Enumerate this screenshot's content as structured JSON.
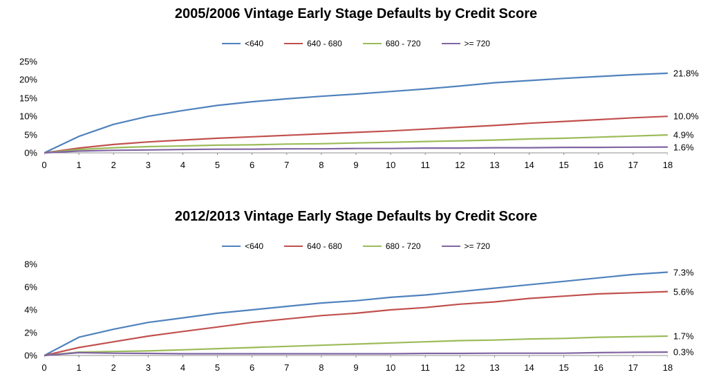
{
  "page": {
    "background": "#ffffff"
  },
  "chart_data": [
    {
      "type": "line",
      "title": "2005/2006 Vintage Early Stage Defaults by Credit Score",
      "xlabel": "",
      "ylabel": "",
      "grid": false,
      "legend_position": "top",
      "x": [
        0,
        1,
        2,
        3,
        4,
        5,
        6,
        7,
        8,
        9,
        10,
        11,
        12,
        13,
        14,
        15,
        16,
        17,
        18
      ],
      "xlim": [
        0,
        18
      ],
      "ylim": [
        0,
        25
      ],
      "yticks": [
        0,
        5,
        10,
        15,
        20,
        25
      ],
      "ytick_labels": [
        "0%",
        "5%",
        "10%",
        "15%",
        "20%",
        "25%"
      ],
      "series": [
        {
          "name": "<640",
          "color": "#4F81BD",
          "end_label": "21.8%",
          "values": [
            0,
            4.5,
            7.8,
            10.0,
            11.6,
            13.0,
            14.0,
            14.8,
            15.5,
            16.1,
            16.8,
            17.5,
            18.3,
            19.2,
            19.8,
            20.4,
            20.9,
            21.4,
            21.8
          ]
        },
        {
          "name": "640 - 680",
          "color": "#C0504D",
          "end_label": "10.0%",
          "values": [
            0,
            1.3,
            2.3,
            3.0,
            3.5,
            4.0,
            4.4,
            4.8,
            5.2,
            5.6,
            6.0,
            6.5,
            7.0,
            7.5,
            8.1,
            8.6,
            9.1,
            9.6,
            10.0
          ]
        },
        {
          "name": "680 - 720",
          "color": "#9BBB59",
          "end_label": "4.9%",
          "values": [
            0,
            0.9,
            1.4,
            1.7,
            1.9,
            2.1,
            2.2,
            2.4,
            2.5,
            2.7,
            2.9,
            3.1,
            3.3,
            3.5,
            3.8,
            4.0,
            4.3,
            4.6,
            4.9
          ]
        },
        {
          "name": ">= 720",
          "color": "#8064A2",
          "end_label": "1.6%",
          "values": [
            0,
            0.5,
            0.7,
            0.8,
            0.9,
            1.0,
            1.0,
            1.1,
            1.1,
            1.2,
            1.2,
            1.3,
            1.3,
            1.4,
            1.4,
            1.5,
            1.5,
            1.55,
            1.6
          ]
        }
      ]
    },
    {
      "type": "line",
      "title": "2012/2013 Vintage Early Stage Defaults by Credit Score",
      "xlabel": "",
      "ylabel": "",
      "grid": false,
      "legend_position": "top",
      "x": [
        0,
        1,
        2,
        3,
        4,
        5,
        6,
        7,
        8,
        9,
        10,
        11,
        12,
        13,
        14,
        15,
        16,
        17,
        18
      ],
      "xlim": [
        0,
        18
      ],
      "ylim": [
        0,
        8
      ],
      "yticks": [
        0,
        2,
        4,
        6,
        8
      ],
      "ytick_labels": [
        "0%",
        "2%",
        "4%",
        "6%",
        "8%"
      ],
      "series": [
        {
          "name": "<640",
          "color": "#4F81BD",
          "end_label": "7.3%",
          "values": [
            0,
            1.6,
            2.3,
            2.9,
            3.3,
            3.7,
            4.0,
            4.3,
            4.6,
            4.8,
            5.1,
            5.3,
            5.6,
            5.9,
            6.2,
            6.5,
            6.8,
            7.1,
            7.3
          ]
        },
        {
          "name": "640 - 680",
          "color": "#C0504D",
          "end_label": "5.6%",
          "values": [
            0,
            0.7,
            1.2,
            1.7,
            2.1,
            2.5,
            2.9,
            3.2,
            3.5,
            3.7,
            4.0,
            4.2,
            4.5,
            4.7,
            5.0,
            5.2,
            5.4,
            5.5,
            5.6
          ]
        },
        {
          "name": "680 - 720",
          "color": "#9BBB59",
          "end_label": "1.7%",
          "values": [
            0,
            0.3,
            0.35,
            0.4,
            0.5,
            0.6,
            0.7,
            0.8,
            0.9,
            1.0,
            1.1,
            1.2,
            1.3,
            1.35,
            1.45,
            1.5,
            1.6,
            1.65,
            1.7
          ]
        },
        {
          "name": ">= 720",
          "color": "#8064A2",
          "end_label": "0.3%",
          "values": [
            0,
            0.25,
            0.2,
            0.18,
            0.15,
            0.15,
            0.15,
            0.15,
            0.15,
            0.15,
            0.15,
            0.18,
            0.18,
            0.2,
            0.2,
            0.2,
            0.25,
            0.28,
            0.3
          ]
        }
      ]
    }
  ],
  "axis_color": "#8c8c8c"
}
